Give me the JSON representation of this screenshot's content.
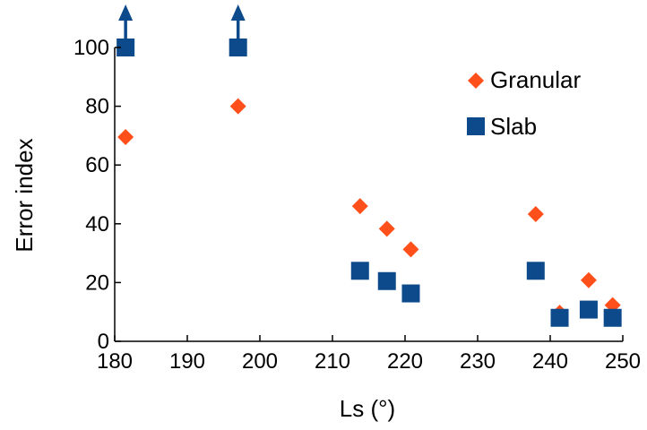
{
  "chart_data": {
    "type": "scatter",
    "xlabel": "Ls (°)",
    "ylabel": "Error index",
    "xlim": [
      180,
      250
    ],
    "ylim": [
      0,
      100
    ],
    "xticks": [
      180,
      190,
      200,
      210,
      220,
      230,
      240,
      250
    ],
    "yticks": [
      0,
      20,
      40,
      60,
      80,
      100
    ],
    "grid": false,
    "legend_position": "top-right",
    "series": [
      {
        "name": "Granular",
        "marker": "diamond",
        "color": "#ff4f1a",
        "points": [
          {
            "x": 181.5,
            "y": 69.5
          },
          {
            "x": 197,
            "y": 80
          },
          {
            "x": 213.8,
            "y": 46
          },
          {
            "x": 217.5,
            "y": 38.3
          },
          {
            "x": 220.8,
            "y": 31.3
          },
          {
            "x": 238,
            "y": 43.3
          },
          {
            "x": 241.3,
            "y": 9.7
          },
          {
            "x": 245.3,
            "y": 20.8
          },
          {
            "x": 248.6,
            "y": 12.3
          }
        ]
      },
      {
        "name": "Slab",
        "marker": "square",
        "color": "#0c4a8c",
        "points": [
          {
            "x": 181.5,
            "y": 100,
            "offscale": true
          },
          {
            "x": 197,
            "y": 100,
            "offscale": true
          },
          {
            "x": 213.8,
            "y": 24
          },
          {
            "x": 217.5,
            "y": 20.5
          },
          {
            "x": 220.8,
            "y": 16.3
          },
          {
            "x": 238,
            "y": 24
          },
          {
            "x": 241.3,
            "y": 8
          },
          {
            "x": 245.3,
            "y": 10.8
          },
          {
            "x": 248.6,
            "y": 8
          }
        ]
      }
    ]
  }
}
